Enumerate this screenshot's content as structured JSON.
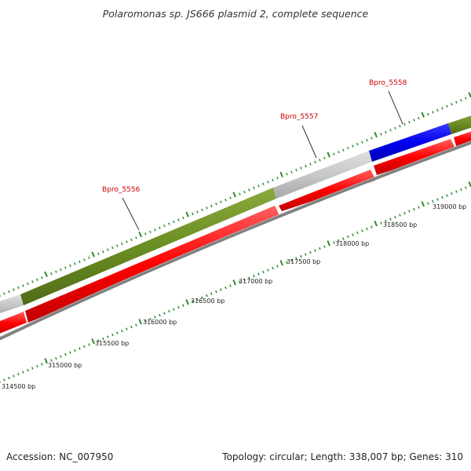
{
  "title": "Polaromonas sp. JS666 plasmid 2, complete sequence",
  "footer": {
    "accession": "Accession: NC_007950",
    "summary": "Topology: circular; Length: 338,007 bp; Genes: 310"
  },
  "colors": {
    "cog_olive": "#6b8e23",
    "cog_gray": "#c8c8c8",
    "cog_blue": "#0000ee",
    "cds_red": "#ff0000",
    "backbone_gray": "#808080",
    "tick_green": "#2e8b2e",
    "label_red": "#cc0000"
  },
  "gene_labels": [
    "Bpro_5556",
    "Bpro_5557",
    "Bpro_5558"
  ],
  "bp_labels": [
    "314500 bp",
    "315000 bp",
    "315500 bp",
    "316000 bp",
    "316500 bp",
    "317000 bp",
    "317500 bp",
    "318000 bp",
    "318500 bp",
    "319000 bp"
  ]
}
